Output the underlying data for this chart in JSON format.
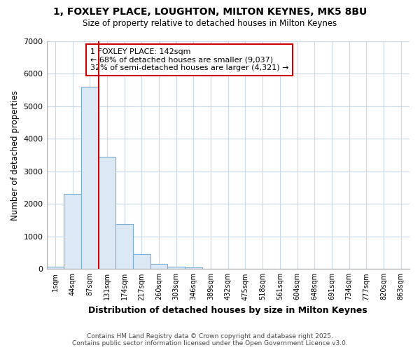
{
  "title_line1": "1, FOXLEY PLACE, LOUGHTON, MILTON KEYNES, MK5 8BU",
  "title_line2": "Size of property relative to detached houses in Milton Keynes",
  "xlabel": "Distribution of detached houses by size in Milton Keynes",
  "ylabel": "Number of detached properties",
  "bin_labels": [
    "1sqm",
    "44sqm",
    "87sqm",
    "131sqm",
    "174sqm",
    "217sqm",
    "260sqm",
    "303sqm",
    "346sqm",
    "389sqm",
    "432sqm",
    "475sqm",
    "518sqm",
    "561sqm",
    "604sqm",
    "648sqm",
    "691sqm",
    "734sqm",
    "777sqm",
    "820sqm",
    "863sqm"
  ],
  "bar_heights": [
    80,
    2300,
    5600,
    3450,
    1380,
    450,
    160,
    80,
    40,
    10,
    5,
    5,
    0,
    0,
    0,
    0,
    0,
    0,
    0,
    0,
    0
  ],
  "bar_color": "#dce9f5",
  "bar_edge_color": "#7baed4",
  "property_bin_index": 3,
  "property_line_color": "#cc0000",
  "annotation_text": "1 FOXLEY PLACE: 142sqm\n← 68% of detached houses are smaller (9,037)\n32% of semi-detached houses are larger (4,321) →",
  "annotation_box_color": "#cc0000",
  "ylim": [
    0,
    7000
  ],
  "yticks": [
    0,
    1000,
    2000,
    3000,
    4000,
    5000,
    6000,
    7000
  ],
  "footer_line1": "Contains HM Land Registry data © Crown copyright and database right 2025.",
  "footer_line2": "Contains public sector information licensed under the Open Government Licence v3.0.",
  "bg_color": "#ffffff",
  "grid_color": "#c8d8e8"
}
